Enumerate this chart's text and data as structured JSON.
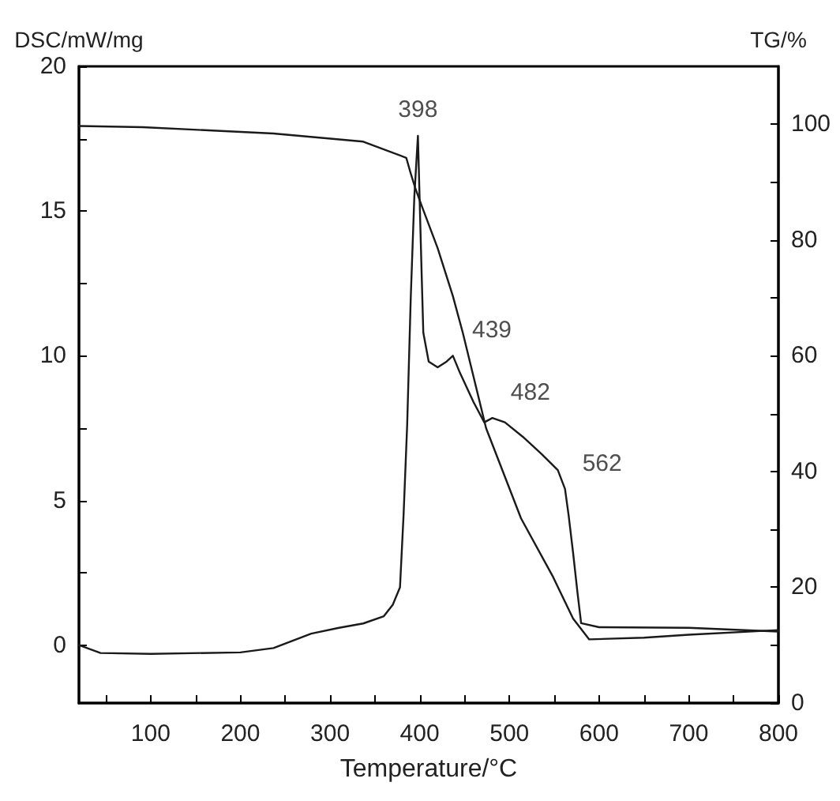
{
  "chart_data": {
    "type": "line",
    "xlabel": "Temperature/°C",
    "ylabel": "DSC/mW/mg",
    "y2label": "TG/%",
    "xlim": [
      20,
      800
    ],
    "xticks": [
      {
        "value": 50,
        "label": null
      },
      100,
      {
        "value": 150,
        "label": null
      },
      200,
      {
        "value": 250,
        "label": null
      },
      300,
      {
        "value": 350,
        "label": null
      },
      400,
      {
        "value": 450,
        "label": null
      },
      500,
      {
        "value": 550,
        "label": null
      },
      600,
      {
        "value": 650,
        "label": null
      },
      700,
      {
        "value": 750,
        "label": null
      },
      800
    ],
    "ylim": [
      -2,
      20
    ],
    "yticks": [
      0,
      {
        "value": 2.5,
        "label": null
      },
      5,
      {
        "value": 7.5,
        "label": null
      },
      10,
      {
        "value": 12.5,
        "label": null
      },
      15,
      {
        "value": 17.5,
        "label": null
      },
      20
    ],
    "y2lim": [
      0,
      110
    ],
    "y2ticks": [
      0,
      {
        "value": 10,
        "label": null
      },
      20,
      {
        "value": 30,
        "label": null
      },
      40,
      {
        "value": 50,
        "label": null
      },
      60,
      {
        "value": 70,
        "label": null
      },
      80,
      {
        "value": 90,
        "label": null
      },
      100
    ],
    "line_style": "solid",
    "marker": "none",
    "grid": false,
    "series": [
      {
        "color": "#1a1a1a",
        "x": [
          20,
          44,
          100,
          200,
          237,
          279,
          310,
          337,
          360,
          370,
          378,
          382,
          386,
          390,
          394,
          398,
          402,
          404,
          410,
          420,
          430,
          437,
          445,
          460,
          472,
          481,
          495,
          515,
          536,
          554,
          562,
          566,
          571,
          576,
          580,
          600,
          700,
          800
        ],
        "values": [
          0,
          -0.27,
          -0.3,
          -0.25,
          -0.1,
          0.4,
          0.6,
          0.75,
          1.0,
          1.4,
          2.0,
          4.5,
          7.6,
          12,
          15.5,
          17.6,
          13,
          10.8,
          9.8,
          9.6,
          9.8,
          10.0,
          9.4,
          8.4,
          7.7,
          7.85,
          7.7,
          7.2,
          6.6,
          6.05,
          5.4,
          4.5,
          3.2,
          1.8,
          0.76,
          0.62,
          0.6,
          0.47
        ]
      },
      {
        "color": "#1a1a1a",
        "axis": "y2",
        "x": [
          20,
          91,
          237,
          337,
          385,
          390,
          395,
          402,
          420,
          437,
          448,
          474,
          513,
          548,
          571,
          589,
          650,
          700,
          800
        ],
        "values": [
          99.7,
          99.5,
          98.4,
          97,
          94.2,
          91.5,
          89,
          86,
          78.6,
          70.3,
          64,
          47.5,
          31.9,
          22,
          14.6,
          11,
          11.3,
          11.8,
          12.6
        ]
      }
    ],
    "annotations": [
      {
        "text": "398",
        "x": 398,
        "y": 17.6
      },
      {
        "text": "439",
        "x": 439,
        "y": 10.0
      },
      {
        "text": "482",
        "x": 482,
        "y": 7.85
      },
      {
        "text": "562",
        "x": 562,
        "y": 5.4
      }
    ]
  }
}
